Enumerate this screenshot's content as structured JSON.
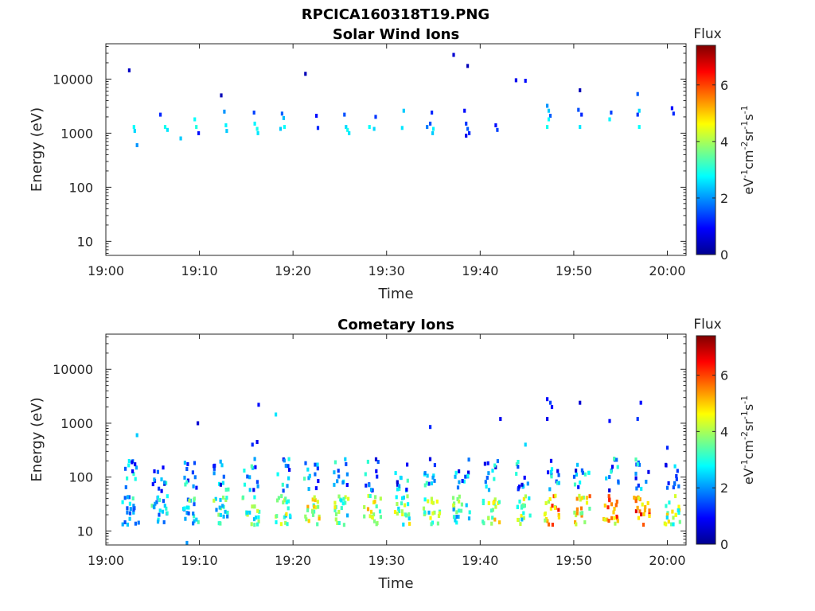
{
  "figure_title": "RPCICA160318T19.PNG",
  "chart_data": [
    {
      "type": "heatmap",
      "title": "Solar Wind Ions",
      "xlabel": "Time",
      "ylabel": "Energy (eV)",
      "x_ticks": [
        "19:00",
        "19:10",
        "19:20",
        "19:30",
        "19:40",
        "19:50",
        "20:00"
      ],
      "x_range": [
        "19:00",
        "20:02"
      ],
      "y_scale": "log",
      "y_ticks": [
        10,
        100,
        1000,
        10000
      ],
      "y_tick_labels": [
        "10",
        "100",
        "1000",
        "10000"
      ],
      "y_range": [
        5.5,
        45000
      ],
      "grid": false,
      "colorbar": {
        "label": "Flux",
        "unit": "eV-1cm-2sr-1s-1",
        "min": 0,
        "max": 7.4,
        "ticks": [
          0,
          2,
          4,
          6
        ],
        "tick_labels": [
          "0",
          "2",
          "4",
          "6"
        ],
        "colormap": "jet"
      },
      "points": [
        {
          "t": "19:02:30",
          "e": 14500,
          "f": 0.5
        },
        {
          "t": "19:03:00",
          "e": 1300,
          "f": 2.8
        },
        {
          "t": "19:03:05",
          "e": 1100,
          "f": 2.5
        },
        {
          "t": "19:03:20",
          "e": 600,
          "f": 2.0
        },
        {
          "t": "19:05:50",
          "e": 2200,
          "f": 1.2
        },
        {
          "t": "19:06:20",
          "e": 1300,
          "f": 2.9
        },
        {
          "t": "19:06:35",
          "e": 1150,
          "f": 2.6
        },
        {
          "t": "19:08:00",
          "e": 800,
          "f": 2.4
        },
        {
          "t": "19:09:30",
          "e": 1800,
          "f": 2.8
        },
        {
          "t": "19:09:40",
          "e": 1300,
          "f": 3.0
        },
        {
          "t": "19:09:55",
          "e": 1000,
          "f": 1.0
        },
        {
          "t": "19:12:20",
          "e": 5000,
          "f": 0.4
        },
        {
          "t": "19:12:40",
          "e": 2500,
          "f": 2.0
        },
        {
          "t": "19:12:50",
          "e": 1400,
          "f": 2.7
        },
        {
          "t": "19:12:55",
          "e": 1100,
          "f": 2.4
        },
        {
          "t": "19:15:50",
          "e": 2400,
          "f": 1.4
        },
        {
          "t": "19:15:55",
          "e": 1500,
          "f": 2.7
        },
        {
          "t": "19:16:10",
          "e": 1200,
          "f": 2.9
        },
        {
          "t": "19:16:15",
          "e": 1000,
          "f": 2.6
        },
        {
          "t": "19:18:50",
          "e": 2300,
          "f": 1.6
        },
        {
          "t": "19:19:00",
          "e": 1900,
          "f": 2.3
        },
        {
          "t": "19:19:05",
          "e": 1300,
          "f": 2.8
        },
        {
          "t": "19:18:40",
          "e": 1200,
          "f": 2.4
        },
        {
          "t": "19:21:20",
          "e": 12500,
          "f": 0.4
        },
        {
          "t": "19:22:30",
          "e": 2100,
          "f": 1.0
        },
        {
          "t": "19:22:40",
          "e": 1250,
          "f": 1.2
        },
        {
          "t": "19:25:30",
          "e": 2200,
          "f": 1.5
        },
        {
          "t": "19:25:40",
          "e": 1300,
          "f": 2.5
        },
        {
          "t": "19:25:50",
          "e": 1150,
          "f": 2.9
        },
        {
          "t": "19:26:00",
          "e": 1000,
          "f": 2.6
        },
        {
          "t": "19:28:50",
          "e": 2000,
          "f": 1.3
        },
        {
          "t": "19:28:10",
          "e": 1300,
          "f": 2.8
        },
        {
          "t": "19:28:40",
          "e": 1200,
          "f": 2.5
        },
        {
          "t": "19:31:50",
          "e": 2600,
          "f": 2.4
        },
        {
          "t": "19:31:40",
          "e": 1250,
          "f": 2.6
        },
        {
          "t": "19:34:50",
          "e": 2400,
          "f": 1.2
        },
        {
          "t": "19:34:40",
          "e": 1500,
          "f": 1.5
        },
        {
          "t": "19:34:20",
          "e": 1300,
          "f": 1.8
        },
        {
          "t": "19:35:00",
          "e": 1200,
          "f": 2.7
        },
        {
          "t": "19:34:55",
          "e": 1000,
          "f": 2.4
        },
        {
          "t": "19:37:10",
          "e": 28000,
          "f": 0.6
        },
        {
          "t": "19:38:40",
          "e": 17500,
          "f": 0.4
        },
        {
          "t": "19:38:20",
          "e": 2600,
          "f": 1.0
        },
        {
          "t": "19:38:30",
          "e": 1500,
          "f": 1.3
        },
        {
          "t": "19:38:40",
          "e": 1200,
          "f": 1.6
        },
        {
          "t": "19:38:50",
          "e": 1000,
          "f": 1.2
        },
        {
          "t": "19:38:30",
          "e": 900,
          "f": 0.8
        },
        {
          "t": "19:41:40",
          "e": 1400,
          "f": 1.0
        },
        {
          "t": "19:41:50",
          "e": 1150,
          "f": 1.4
        },
        {
          "t": "19:43:50",
          "e": 9500,
          "f": 0.8
        },
        {
          "t": "19:44:50",
          "e": 9300,
          "f": 1.0
        },
        {
          "t": "19:47:10",
          "e": 3200,
          "f": 2.0
        },
        {
          "t": "19:47:20",
          "e": 2600,
          "f": 2.4
        },
        {
          "t": "19:47:30",
          "e": 2100,
          "f": 1.6
        },
        {
          "t": "19:47:20",
          "e": 1800,
          "f": 2.8
        },
        {
          "t": "19:47:10",
          "e": 1300,
          "f": 2.9
        },
        {
          "t": "19:50:40",
          "e": 6200,
          "f": 0.4
        },
        {
          "t": "19:50:30",
          "e": 2700,
          "f": 1.5
        },
        {
          "t": "19:50:50",
          "e": 2200,
          "f": 1.2
        },
        {
          "t": "19:50:40",
          "e": 1300,
          "f": 2.6
        },
        {
          "t": "19:54:00",
          "e": 2400,
          "f": 1.4
        },
        {
          "t": "19:53:50",
          "e": 1800,
          "f": 2.7
        },
        {
          "t": "19:56:50",
          "e": 5300,
          "f": 1.6
        },
        {
          "t": "19:57:00",
          "e": 2600,
          "f": 2.5
        },
        {
          "t": "19:56:50",
          "e": 2200,
          "f": 1.3
        },
        {
          "t": "19:57:00",
          "e": 1300,
          "f": 2.8
        },
        {
          "t": "20:00:30",
          "e": 2900,
          "f": 1.0
        },
        {
          "t": "20:00:40",
          "e": 2300,
          "f": 1.2
        }
      ]
    },
    {
      "type": "heatmap",
      "title": "Cometary Ions",
      "xlabel": "Time",
      "ylabel": "Energy (eV)",
      "x_ticks": [
        "19:00",
        "19:10",
        "19:20",
        "19:30",
        "19:40",
        "19:50",
        "20:00"
      ],
      "x_range": [
        "19:00",
        "20:02"
      ],
      "y_scale": "log",
      "y_ticks": [
        10,
        100,
        1000,
        10000
      ],
      "y_tick_labels": [
        "10",
        "100",
        "1000",
        "10000"
      ],
      "y_range": [
        5.5,
        45000
      ],
      "grid": false,
      "colorbar": {
        "label": "Flux",
        "unit": "eV-1cm-2sr-1s-1",
        "min": 0,
        "max": 7.4,
        "ticks": [
          0,
          2,
          4,
          6
        ],
        "tick_labels": [
          "0",
          "2",
          "4",
          "6"
        ],
        "colormap": "jet"
      },
      "burst_times": [
        "19:02:40",
        "19:05:50",
        "19:09:00",
        "19:12:20",
        "19:15:30",
        "19:18:50",
        "19:22:00",
        "19:25:10",
        "19:28:30",
        "19:31:40",
        "19:34:50",
        "19:38:00",
        "19:41:10",
        "19:44:30",
        "19:47:40",
        "19:50:50",
        "19:54:00",
        "19:57:20",
        "20:00:30"
      ],
      "burst_intensity": [
        3.6,
        3.6,
        4.0,
        4.4,
        4.6,
        4.8,
        5.4,
        4.8,
        5.6,
        5.0,
        4.6,
        4.4,
        5.2,
        4.8,
        6.4,
        6.0,
        6.6,
        6.8,
        5.0
      ],
      "isolated_points": [
        {
          "t": "19:03:20",
          "e": 600,
          "f": 2.4
        },
        {
          "t": "19:09:50",
          "e": 1000,
          "f": 0.6
        },
        {
          "t": "19:16:20",
          "e": 2200,
          "f": 1.0
        },
        {
          "t": "19:16:10",
          "e": 450,
          "f": 0.8
        },
        {
          "t": "19:15:40",
          "e": 400,
          "f": 1.2
        },
        {
          "t": "19:18:10",
          "e": 1450,
          "f": 2.6
        },
        {
          "t": "19:34:40",
          "e": 850,
          "f": 1.2
        },
        {
          "t": "19:42:10",
          "e": 1200,
          "f": 0.8
        },
        {
          "t": "19:44:50",
          "e": 400,
          "f": 2.5
        },
        {
          "t": "19:47:10",
          "e": 2800,
          "f": 1.0
        },
        {
          "t": "19:47:30",
          "e": 2400,
          "f": 1.4
        },
        {
          "t": "19:47:40",
          "e": 2000,
          "f": 1.0
        },
        {
          "t": "19:47:10",
          "e": 1200,
          "f": 0.8
        },
        {
          "t": "19:50:40",
          "e": 2400,
          "f": 0.6
        },
        {
          "t": "19:53:50",
          "e": 1100,
          "f": 1.0
        },
        {
          "t": "19:57:10",
          "e": 2400,
          "f": 1.0
        },
        {
          "t": "19:56:50",
          "e": 1200,
          "f": 1.3
        },
        {
          "t": "20:00:00",
          "e": 350,
          "f": 1.2
        },
        {
          "t": "19:08:40",
          "e": 6,
          "f": 2.0
        }
      ]
    }
  ]
}
